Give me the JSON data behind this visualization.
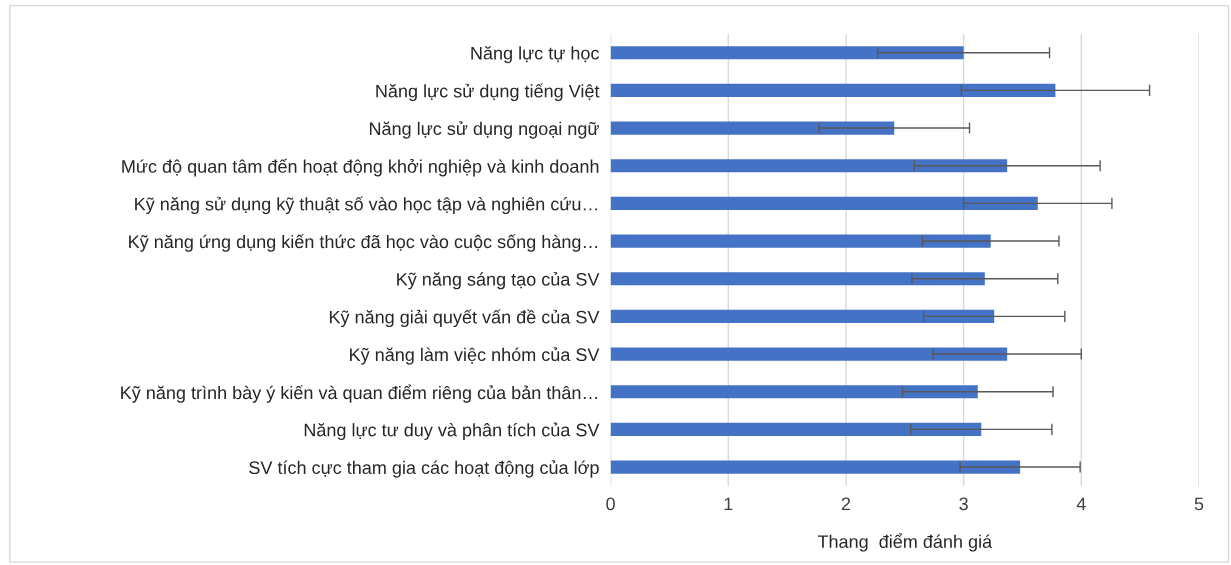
{
  "chart_data": {
    "type": "bar",
    "orientation": "horizontal",
    "xlabel": "Thang  điểm đánh giá",
    "categories": [
      "Năng lực tự học",
      "Năng lực sử dụng tiếng Việt",
      "Năng lực sử dụng ngoại ngữ",
      "Mức độ quan tâm đến hoạt động khởi nghiệp và kinh doanh",
      "Kỹ năng sử dụng kỹ thuật số vào học tập và nghiên cứu…",
      "Kỹ năng ứng dụng kiến thức đã học vào cuộc sống hàng…",
      "Kỹ năng sáng tạo của SV",
      "Kỹ năng giải quyết vấn đề của SV",
      "Kỹ năng làm việc nhóm của SV",
      "Kỹ năng trình bày ý kiến và quan điểm riêng của bản thân…",
      "Năng lực tư duy và phân tích của SV",
      "SV tích cực tham gia các hoạt động của lớp"
    ],
    "values": [
      3.0,
      3.78,
      2.41,
      3.37,
      3.63,
      3.23,
      3.18,
      3.26,
      3.37,
      3.12,
      3.15,
      3.48
    ],
    "errors": [
      0.73,
      0.8,
      0.64,
      0.79,
      0.63,
      0.58,
      0.62,
      0.6,
      0.63,
      0.64,
      0.6,
      0.51
    ],
    "color": "#4472c4",
    "xlim": [
      0,
      5
    ],
    "xticks": [
      0,
      1,
      2,
      3,
      4,
      5
    ],
    "grid": "x"
  }
}
